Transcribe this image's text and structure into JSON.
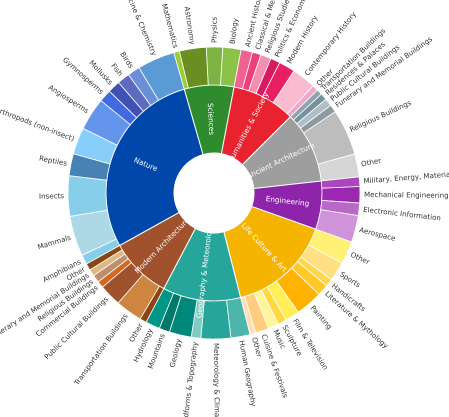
{
  "chart_data": {
    "type": "sunburst",
    "title": "",
    "categories": [
      {
        "name": "Sciences",
        "color": "#2e8b2e",
        "children": [
          {
            "name": "Mathematics",
            "value": 1.2,
            "color": "#9acd32"
          },
          {
            "name": "Astronomy",
            "value": 5.6,
            "color": "#6b8e23"
          },
          {
            "name": "Physics",
            "value": 3.4,
            "color": "#7cb342"
          },
          {
            "name": "Biology",
            "value": 3.8,
            "color": "#8bc34a"
          }
        ]
      },
      {
        "name": "Humanities & Society",
        "color": "#e8232f",
        "children": [
          {
            "name": "Ancient History",
            "value": 2.4,
            "color": "#f06292"
          },
          {
            "name": "Classical & Medieval History",
            "value": 1.8,
            "color": "#ec407a"
          },
          {
            "name": "Religious Studies",
            "value": 2.2,
            "color": "#f48fb1"
          },
          {
            "name": "Politics & Economics",
            "value": 2.0,
            "color": "#d81b60"
          },
          {
            "name": "Modern History",
            "value": 3.4,
            "color": "#e91e63"
          },
          {
            "name": "Contemporary History",
            "value": 5.0,
            "color": "#f8bbd0"
          },
          {
            "name": "Other",
            "value": 1.2,
            "color": "#f3a6c8"
          }
        ]
      },
      {
        "name": "Ancient Architecture",
        "color": "#9e9e9e",
        "children": [
          {
            "name": "Transportation Buildings",
            "value": 1.2,
            "color": "#90a4ae"
          },
          {
            "name": "Residences & Palaces",
            "value": 1.4,
            "color": "#78909c"
          },
          {
            "name": "Public Cultural Buildings",
            "value": 1.6,
            "color": "#b0bec5"
          },
          {
            "name": "Funerary and Memorial Buildings",
            "value": 1.6,
            "color": "#8d9aa0"
          },
          {
            "name": "Religious Buildings",
            "value": 9.6,
            "color": "#bdbdbd"
          },
          {
            "name": "Other",
            "value": 4.8,
            "color": "#d6d6d6"
          }
        ]
      },
      {
        "name": "Engineering",
        "color": "#8e24aa",
        "children": [
          {
            "name": "Military, Energy, Materials, Chemical Engineering",
            "value": 2.0,
            "color": "#ab47bc"
          },
          {
            "name": "Mechanical Engineering",
            "value": 3.4,
            "color": "#9c27b0"
          },
          {
            "name": "Electronic Information",
            "value": 2.6,
            "color": "#ba68c8"
          },
          {
            "name": "Aerospace",
            "value": 5.6,
            "color": "#ce93d8"
          }
        ]
      },
      {
        "name": "Life Culture & Art",
        "color": "#f4b400",
        "children": [
          {
            "name": "Other",
            "value": 4.8,
            "color": "#fff176"
          },
          {
            "name": "Sports",
            "value": 4.0,
            "color": "#ffe082"
          },
          {
            "name": "Handicrafts",
            "value": 1.6,
            "color": "#ffd54f"
          },
          {
            "name": "Literature & Mythology",
            "value": 2.4,
            "color": "#ffca28"
          },
          {
            "name": "Painting",
            "value": 5.6,
            "color": "#ffb300"
          },
          {
            "name": "Film & Television",
            "value": 3.0,
            "color": "#ffee58"
          },
          {
            "name": "Sculpture",
            "value": 1.8,
            "color": "#ffd740"
          },
          {
            "name": "Music",
            "value": 2.2,
            "color": "#fff59d"
          },
          {
            "name": "Cuisine & Festivals",
            "value": 2.8,
            "color": "#ffcc80"
          },
          {
            "name": "Other",
            "value": 1.2,
            "color": "#ffe0b2"
          }
        ]
      },
      {
        "name": "Geography & Meteorological",
        "color": "#26a69a",
        "children": [
          {
            "name": "Human Geography",
            "value": 4.0,
            "color": "#4db6ac"
          },
          {
            "name": "Meteorology & Climate",
            "value": 6.2,
            "color": "#26a69a"
          },
          {
            "name": "Landforms & Topography",
            "value": 2.0,
            "color": "#80cbc4"
          },
          {
            "name": "Geology",
            "value": 4.6,
            "color": "#00897b"
          },
          {
            "name": "Mountains",
            "value": 2.2,
            "color": "#00796b"
          },
          {
            "name": "Hydrology",
            "value": 3.0,
            "color": "#009688"
          }
        ]
      },
      {
        "name": "Modern Architecture",
        "color": "#a0522d",
        "children": [
          {
            "name": "Other",
            "value": 1.4,
            "color": "#8b4513"
          },
          {
            "name": "Transportation Buildings",
            "value": 5.6,
            "color": "#cd853f"
          },
          {
            "name": "Public Cultural Buildings",
            "value": 4.6,
            "color": "#a0522d"
          },
          {
            "name": "Commercial Buildings",
            "value": 1.4,
            "color": "#d2691e"
          },
          {
            "name": "Religious Buildings",
            "value": 1.6,
            "color": "#bc8f6f"
          },
          {
            "name": "Funerary and Memorial Buildings",
            "value": 1.4,
            "color": "#deb887"
          },
          {
            "name": "Other",
            "value": 1.4,
            "color": "#8b4513"
          }
        ]
      },
      {
        "name": "Nature",
        "color": "#0047ab",
        "children": [
          {
            "name": "Amphibians",
            "value": 2.0,
            "color": "#87ceeb"
          },
          {
            "name": "Mammals",
            "value": 8.4,
            "color": "#add8e6"
          },
          {
            "name": "Insects",
            "value": 8.4,
            "color": "#87ceeb"
          },
          {
            "name": "Reptiles",
            "value": 4.6,
            "color": "#4682b4"
          },
          {
            "name": "Arthropods (non-insect)",
            "value": 5.6,
            "color": "#87cefa"
          },
          {
            "name": "Angiosperms",
            "value": 6.8,
            "color": "#6495ed"
          },
          {
            "name": "Gymnosperms",
            "value": 2.6,
            "color": "#4169e1"
          },
          {
            "name": "Mollusks",
            "value": 2.6,
            "color": "#3f51b5"
          },
          {
            "name": "Fish",
            "value": 2.6,
            "color": "#5c6bc0"
          },
          {
            "name": "Birds",
            "value": 2.6,
            "color": "#6a8fd8"
          },
          {
            "name": "Medicine & Chemistry",
            "value": 7.8,
            "color": "#5b9bd5"
          }
        ]
      }
    ]
  }
}
